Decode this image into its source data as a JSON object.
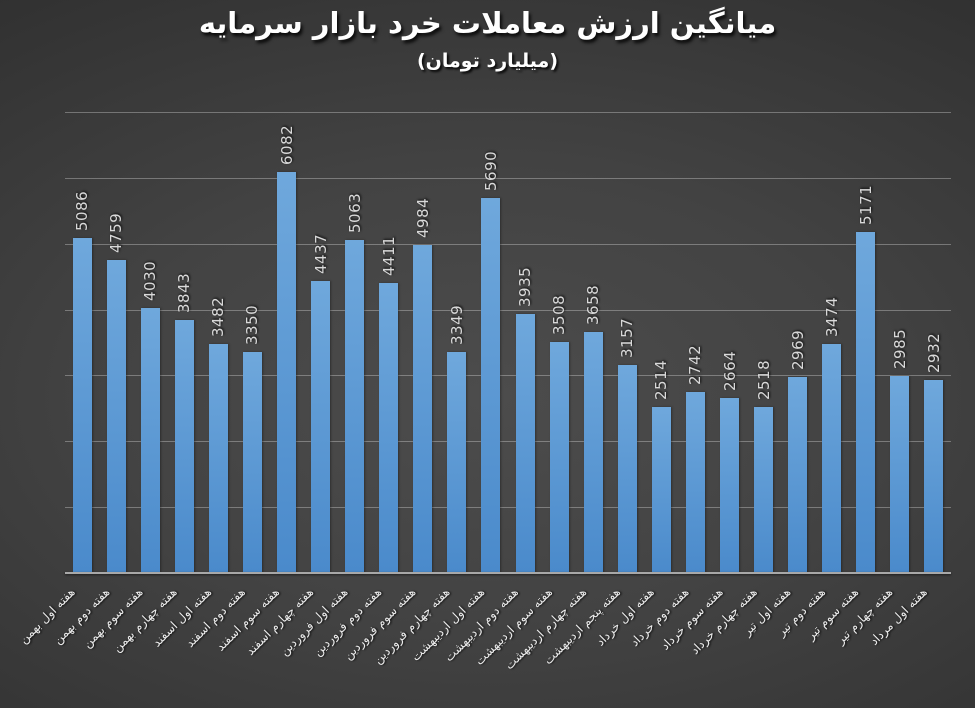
{
  "chart_data": {
    "type": "bar",
    "title": "میانگین ارزش معاملات خرد بازار سرمایه",
    "subtitle": "(میلیارد تومان)",
    "categories": [
      "هفته اول بهمن",
      "هفته دوم بهمن",
      "هفته سوم بهمن",
      "هفته چهارم بهمن",
      "هفته اول اسفند",
      "هفته دوم اسفند",
      "هفته سوم اسفند",
      "هفته چهارم اسفند",
      "هفته اول فروردین",
      "هفته دوم فروردین",
      "هفته سوم فروردین",
      "هفته چهارم فروردین",
      "هفته اول اردیبهشت",
      "هفته دوم اردیبهشت",
      "هفته سوم اردیبهشت",
      "هفته چهارم اردیبهشت",
      "هفته پنجم اردیبهشت",
      "هفته اول خرداد",
      "هفته دوم خرداد",
      "هفته سوم خرداد",
      "هفته چهارم خرداد",
      "هفته اول تیر",
      "هفته دوم تیر",
      "هفته سوم تیر",
      "هفته چهارم تیر",
      "هفته اول مرداد"
    ],
    "values": [
      5086,
      4759,
      4030,
      3843,
      3482,
      3350,
      6082,
      4437,
      5063,
      4411,
      4984,
      3349,
      5690,
      3935,
      3508,
      3658,
      3157,
      2514,
      2742,
      2664,
      2518,
      2969,
      3474,
      5171,
      2985,
      2932
    ],
    "xlabel": "",
    "ylabel": "",
    "ylim": [
      0,
      7000
    ],
    "y_gridline_step": 1000,
    "grid": true,
    "legend": "none",
    "y_axis_tick_labels_visible": false,
    "value_label_rotation_deg": -90,
    "category_label_rotation_deg": -45,
    "colors": {
      "bar_top": "#6fa8dc",
      "bar_bottom": "#4a8acb",
      "gridline": "rgba(255,255,255,0.30)",
      "axis_line": "#a8a8a8",
      "title_text": "#ffffff",
      "value_label_text": "#d9d9d9",
      "category_label_text": "#ececec",
      "background_center": "#4c4c4c",
      "background_edge": "#232323"
    }
  }
}
